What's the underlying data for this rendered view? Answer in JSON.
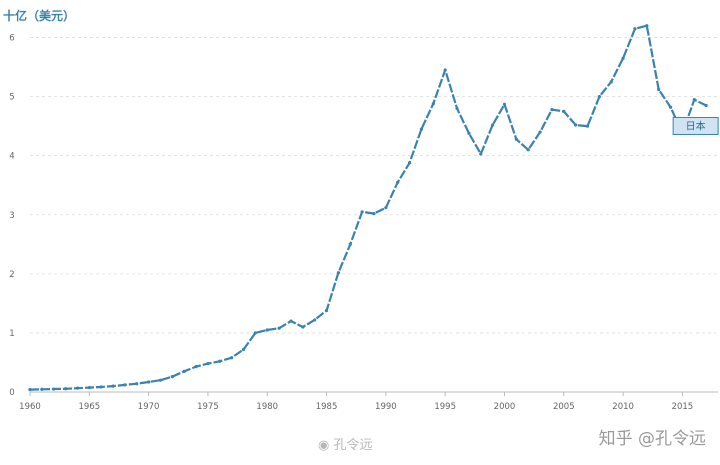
{
  "chart_data": {
    "type": "line",
    "unit_label": "十亿（美元）",
    "series": [
      {
        "name": "日本",
        "color": "#3a82b0",
        "x": [
          1960,
          1961,
          1962,
          1963,
          1964,
          1965,
          1966,
          1967,
          1968,
          1969,
          1970,
          1971,
          1972,
          1973,
          1974,
          1975,
          1976,
          1977,
          1978,
          1979,
          1980,
          1981,
          1982,
          1983,
          1984,
          1985,
          1986,
          1987,
          1988,
          1989,
          1990,
          1991,
          1992,
          1993,
          1994,
          1995,
          1996,
          1997,
          1998,
          1999,
          2000,
          2001,
          2002,
          2003,
          2004,
          2005,
          2006,
          2007,
          2008,
          2009,
          2010,
          2011,
          2012,
          2013,
          2014,
          2015,
          2016,
          2017
        ],
        "values": [
          0.04,
          0.045,
          0.05,
          0.055,
          0.065,
          0.075,
          0.085,
          0.1,
          0.12,
          0.14,
          0.17,
          0.2,
          0.26,
          0.35,
          0.43,
          0.48,
          0.52,
          0.58,
          0.72,
          1.0,
          1.05,
          1.08,
          1.2,
          1.1,
          1.22,
          1.38,
          2.02,
          2.5,
          3.05,
          3.02,
          3.12,
          3.55,
          3.88,
          4.45,
          4.88,
          5.45,
          4.8,
          4.38,
          4.03,
          4.52,
          4.87,
          4.28,
          4.1,
          4.4,
          4.78,
          4.75,
          4.52,
          4.5,
          5.0,
          5.25,
          5.65,
          6.15,
          6.2,
          5.12,
          4.82,
          4.38,
          4.95,
          4.85
        ]
      }
    ],
    "xticks": [
      1960,
      1965,
      1970,
      1975,
      1980,
      1985,
      1990,
      1995,
      2000,
      2005,
      2010,
      2015
    ],
    "yticks": [
      0,
      1,
      2,
      3,
      4,
      5,
      6
    ],
    "xlim": [
      1960,
      2018
    ],
    "ylim": [
      0,
      6.5
    ],
    "grid": true
  },
  "watermark": {
    "site": "知乎 @孔令远",
    "weibo": "孔令远"
  }
}
